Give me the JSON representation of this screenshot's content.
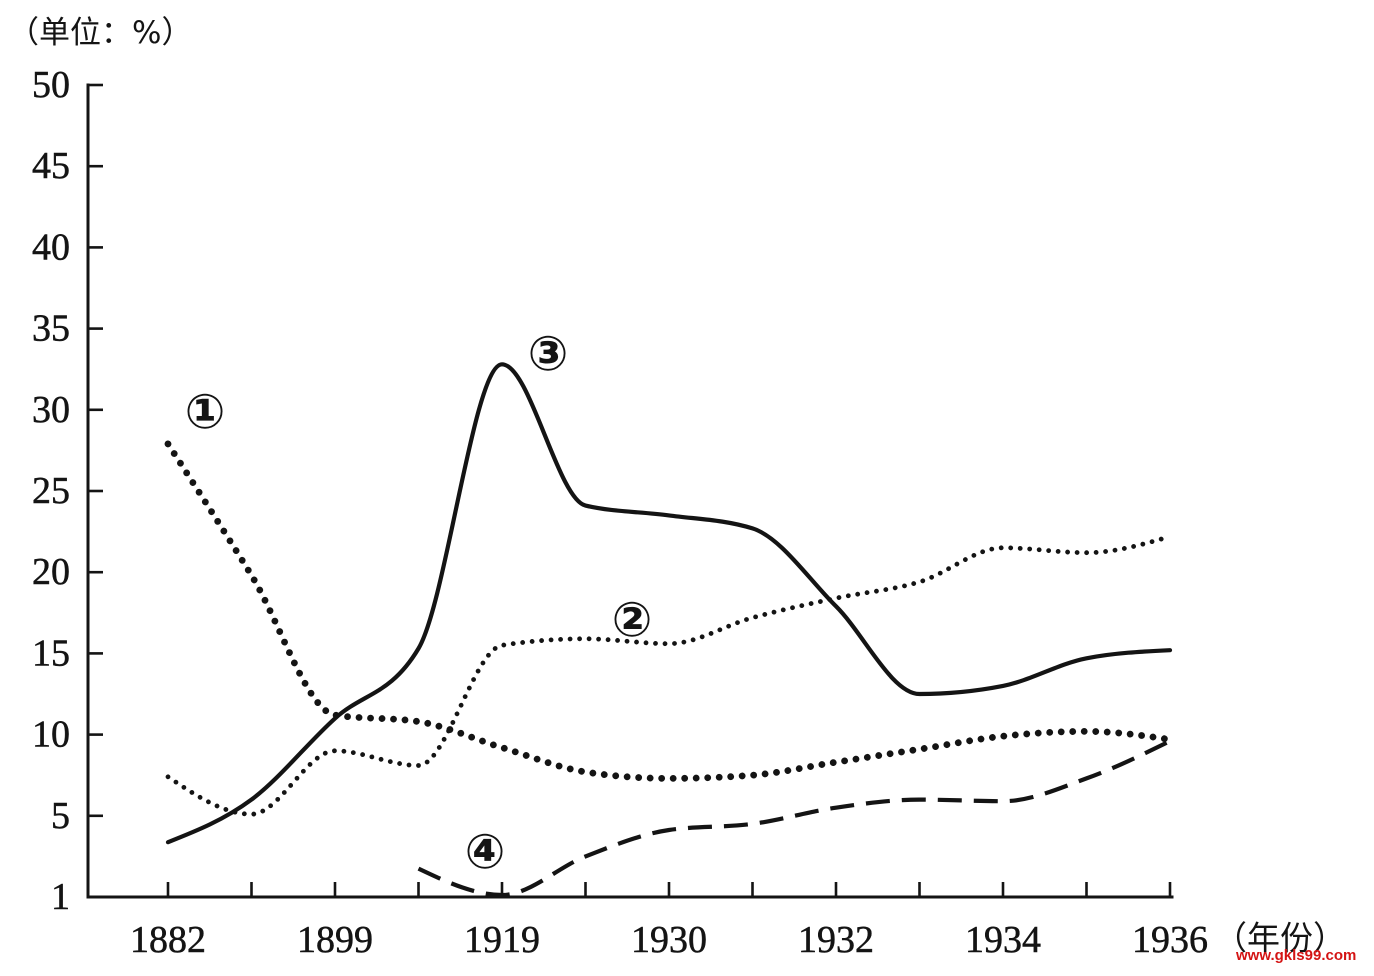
{
  "chart_data": {
    "type": "line",
    "ylabel": "（单位：%）",
    "xlabel": "（年份）",
    "categories": [
      "1882",
      "",
      "1899",
      "",
      "1919",
      "",
      "1930",
      "",
      "1932",
      "",
      "1934",
      "",
      "1936"
    ],
    "yticks": [
      1,
      5,
      10,
      15,
      20,
      25,
      30,
      35,
      40,
      45,
      50
    ],
    "ylim": [
      1,
      50
    ],
    "grid": false,
    "series": [
      {
        "name": "①",
        "line_style": "heavy-dotted",
        "color": "#141414",
        "values": [
          27.9,
          19.8,
          11.2,
          10.8,
          9.2,
          7.7,
          7.3,
          7.5,
          8.3,
          9.1,
          9.9,
          10.2,
          9.7
        ]
      },
      {
        "name": "②",
        "line_style": "dotted",
        "color": "#141414",
        "values": [
          7.4,
          5.1,
          9.0,
          8.1,
          15.5,
          15.9,
          15.6,
          17.2,
          18.4,
          19.4,
          21.5,
          21.2,
          22.2
        ]
      },
      {
        "name": "③",
        "line_style": "solid",
        "color": "#141414",
        "values": [
          3.7,
          6.0,
          11.0,
          15.3,
          32.8,
          24.1,
          23.5,
          22.7,
          17.9,
          12.5,
          13.0,
          14.7,
          15.2
        ]
      },
      {
        "name": "④",
        "line_style": "dashed",
        "color": "#141414",
        "values": [
          null,
          null,
          null,
          2.4,
          1.1,
          3.0,
          4.3,
          4.6,
          5.5,
          6.0,
          5.9,
          7.3,
          9.6
        ]
      }
    ]
  },
  "watermark": "www.gkls99.com",
  "watermark_color": "#d41414"
}
